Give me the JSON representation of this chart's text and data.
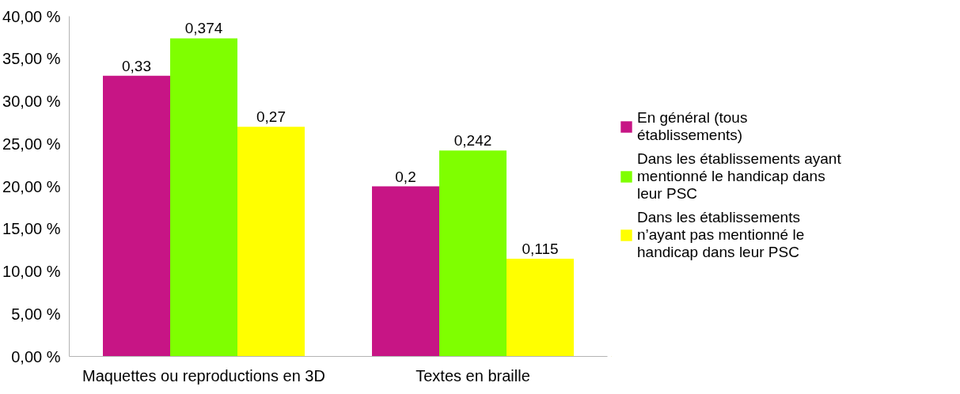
{
  "chart_data": {
    "type": "bar",
    "categories": [
      "Maquettes ou reproductions en 3D",
      "Textes en braille"
    ],
    "series": [
      {
        "name": "En général (tous établissements)",
        "color": "#c71585",
        "values": [
          0.33,
          0.2
        ],
        "value_labels": [
          "0,33",
          "0,2"
        ]
      },
      {
        "name": "Dans les établissements ayant mentionné le handicap dans leur PSC",
        "color": "#7fff00",
        "values": [
          0.374,
          0.242
        ],
        "value_labels": [
          "0,374",
          "0,242"
        ]
      },
      {
        "name": "Dans les établissements n’ayant pas mentionné le handicap dans leur PSC",
        "color": "#ffff00",
        "values": [
          0.27,
          0.115
        ],
        "value_labels": [
          "0,27",
          "0,115"
        ]
      }
    ],
    "ylim": [
      0,
      0.4
    ],
    "yticks": [
      {
        "value": 0,
        "label": "0,00 %"
      },
      {
        "value": 0.05,
        "label": "5,00 %"
      },
      {
        "value": 0.1,
        "label": "10,00 %"
      },
      {
        "value": 0.15,
        "label": "15,00 %"
      },
      {
        "value": 0.2,
        "label": "20,00 %"
      },
      {
        "value": 0.25,
        "label": "25,00 %"
      },
      {
        "value": 0.3,
        "label": "30,00 %"
      },
      {
        "value": 0.35,
        "label": "35,00 %"
      },
      {
        "value": 0.4,
        "label": "40,00 %"
      }
    ],
    "grid": false,
    "legend": "right"
  }
}
